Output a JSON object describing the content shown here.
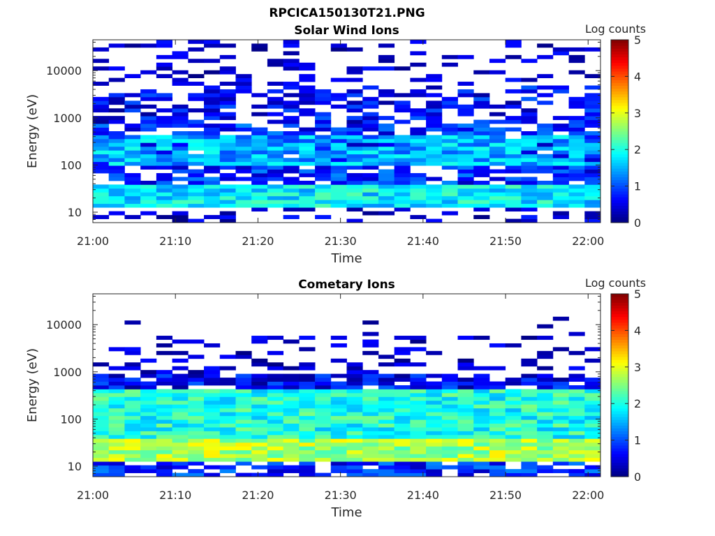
{
  "figure": {
    "title": "RPCICA150130T21.PNG"
  },
  "chart_data": [
    {
      "type": "heatmap",
      "title": "Solar Wind Ions",
      "xlabel": "Time",
      "ylabel": "Energy (eV)",
      "x_ticks": [
        "21:00",
        "21:10",
        "21:20",
        "21:30",
        "21:40",
        "21:50",
        "22:00"
      ],
      "y_ticks": [
        "10",
        "100",
        "1000",
        "10000"
      ],
      "y_scale": "log",
      "ylim": [
        6,
        45000
      ],
      "x_range_minutes": [
        0,
        61.5
      ],
      "colorbar": {
        "label": "Log counts",
        "ticks": [
          "0",
          "1",
          "2",
          "3",
          "4",
          "5"
        ],
        "range": [
          0,
          5
        ],
        "colormap": "jet"
      },
      "n_time_bins": 32,
      "n_energy_bins": 48,
      "bands": [
        {
          "energy_range": [
            6,
            13
          ],
          "level": 0.3,
          "coverage": 0.45
        },
        {
          "energy_range": [
            13,
            40
          ],
          "level": 1.8,
          "coverage": 1.0
        },
        {
          "energy_range": [
            40,
            700
          ],
          "level": 0.8,
          "coverage": 0.75
        },
        {
          "energy_range": [
            90,
            400
          ],
          "level": 1.5,
          "coverage": 0.9
        },
        {
          "energy_range": [
            700,
            5000
          ],
          "level": 0.6,
          "coverage": 0.55
        },
        {
          "energy_range": [
            5000,
            45000
          ],
          "level": 0.25,
          "coverage": 0.3
        }
      ]
    },
    {
      "type": "heatmap",
      "title": "Cometary Ions",
      "xlabel": "Time",
      "ylabel": "Energy (eV)",
      "x_ticks": [
        "21:00",
        "21:10",
        "21:20",
        "21:30",
        "21:40",
        "21:50",
        "22:00"
      ],
      "y_ticks": [
        "10",
        "100",
        "1000",
        "10000"
      ],
      "y_scale": "log",
      "ylim": [
        6,
        45000
      ],
      "x_range_minutes": [
        0,
        61.5
      ],
      "colorbar": {
        "label": "Log counts",
        "ticks": [
          "0",
          "1",
          "2",
          "3",
          "4",
          "5"
        ],
        "range": [
          0,
          5
        ],
        "colormap": "jet"
      },
      "n_time_bins": 32,
      "n_energy_bins": 48,
      "bands": [
        {
          "energy_range": [
            6,
            13
          ],
          "level": 0.8,
          "coverage": 0.7
        },
        {
          "energy_range": [
            13,
            40
          ],
          "level": 2.7,
          "coverage": 1.0
        },
        {
          "energy_range": [
            40,
            400
          ],
          "level": 2.0,
          "coverage": 1.0
        },
        {
          "energy_range": [
            400,
            900
          ],
          "level": 0.6,
          "coverage": 0.85
        },
        {
          "energy_range": [
            900,
            6000
          ],
          "level": 0.2,
          "coverage": 0.3
        },
        {
          "energy_range": [
            6000,
            15000
          ],
          "level": 0.1,
          "coverage": 0.08
        }
      ]
    }
  ]
}
